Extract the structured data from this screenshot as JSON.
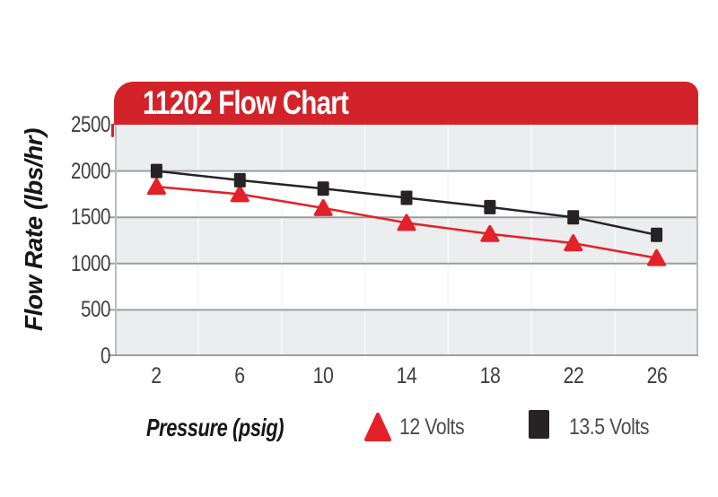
{
  "header": {
    "title": "11202 Flow Chart",
    "background": "#d2232a",
    "text_color": "#ffffff"
  },
  "chart_data": {
    "type": "line",
    "title": "11202 Flow Chart",
    "xlabel": "Pressure (psig)",
    "ylabel": "Flow Rate (lbs/hr)",
    "categories": [
      "2",
      "6",
      "10",
      "14",
      "18",
      "22",
      "26"
    ],
    "yticks": [
      "0",
      "500",
      "1000",
      "1500",
      "2000",
      "2500"
    ],
    "ylim": [
      0,
      2500
    ],
    "series": [
      {
        "name": "12 Volts",
        "marker": "triangle",
        "color": "#e42028",
        "values": [
          1830,
          1750,
          1600,
          1440,
          1320,
          1220,
          1060
        ]
      },
      {
        "name": "13.5 Volts",
        "marker": "square",
        "color": "#272324",
        "values": [
          2000,
          1900,
          1810,
          1710,
          1610,
          1500,
          1310
        ]
      }
    ],
    "grid": {
      "horizontal": true,
      "vertical_category_separators": true,
      "alternating_bands": true
    },
    "legend_position": "bottom",
    "style": {
      "band": "#ebedee",
      "band_alt": "#ffffff",
      "hgrid": "#9b9da0",
      "vgrid": "#f7f8f9",
      "border": "#bbbdbf",
      "tick_text": "#3f3f41",
      "legend_text": "#4c4c4e"
    }
  }
}
